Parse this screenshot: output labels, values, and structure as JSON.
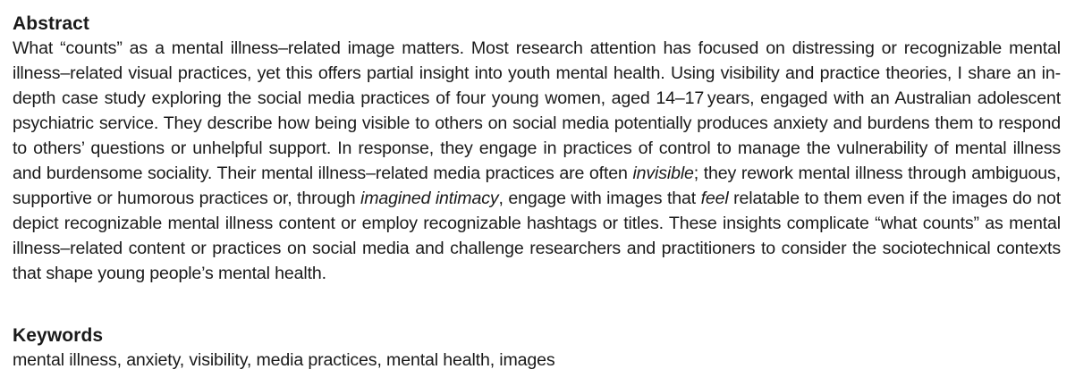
{
  "abstract": {
    "heading": "Abstract",
    "body": [
      {
        "text": "What “counts” as a mental illness–related image matters. Most research attention has focused on distressing or recognizable mental illness–related visual practices, yet this offers partial insight into youth mental health. Using visibility and practice theories, I share an in-depth case study exploring the social media practices of four young women, aged 14–17 years, engaged with an Australian adolescent psychiatric service. They describe how being visible to others on social media potentially produces anxiety and burdens them to respond to others’ questions or unhelpful support. In response, they engage in practices of control to manage the vulnerability of mental illness and burdensome sociality. Their mental illness–related media practices are often ",
        "italic": false
      },
      {
        "text": "invisible",
        "italic": true
      },
      {
        "text": "; they rework mental illness through ambiguous, supportive or humorous practices or, through ",
        "italic": false
      },
      {
        "text": "imagined intimacy",
        "italic": true
      },
      {
        "text": ", engage with images that ",
        "italic": false
      },
      {
        "text": "feel",
        "italic": true
      },
      {
        "text": " relatable to them even if the images do not depict recognizable mental illness content or employ recognizable hashtags or titles. These insights complicate “what counts” as mental illness–related content or practices on social media and challenge researchers and practitioners to consider the sociotechnical contexts that shape young people’s mental health.",
        "italic": false
      }
    ]
  },
  "keywords": {
    "heading": "Keywords",
    "list": "mental illness, anxiety, visibility, media practices, mental health, images"
  }
}
